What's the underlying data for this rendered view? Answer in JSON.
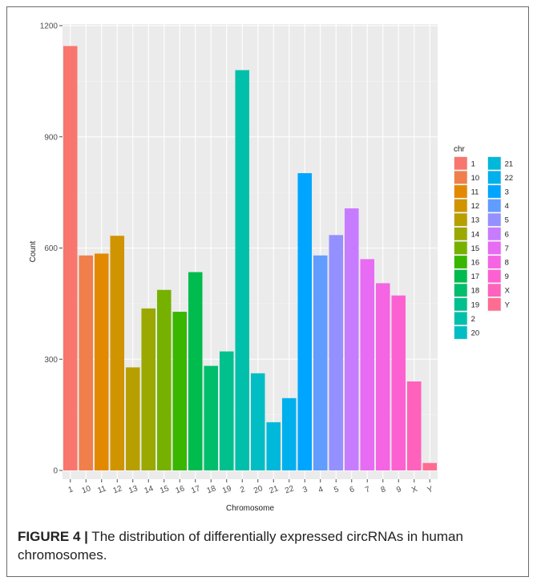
{
  "caption": {
    "label": "FIGURE 4 |",
    "text": " The distribution of differentially expressed circRNAs in human chromosomes."
  },
  "colors": {
    "panel_bg": "#ebebeb",
    "grid_major": "#ffffff",
    "grid_minor": "#f4f4f4"
  },
  "chart_data": {
    "type": "bar",
    "xlabel": "Chromosome",
    "ylabel": "Count",
    "ylim": [
      0,
      1200
    ],
    "yticks": [
      0,
      300,
      600,
      900,
      1200
    ],
    "grid": true,
    "legend_title": "chr",
    "legend_position": "right",
    "categories": [
      "1",
      "10",
      "11",
      "12",
      "13",
      "14",
      "15",
      "16",
      "17",
      "18",
      "19",
      "2",
      "20",
      "21",
      "22",
      "3",
      "4",
      "5",
      "6",
      "7",
      "8",
      "9",
      "X",
      "Y"
    ],
    "values": [
      1145,
      580,
      585,
      633,
      278,
      437,
      487,
      428,
      535,
      282,
      321,
      1080,
      262,
      130,
      195,
      802,
      580,
      635,
      707,
      570,
      505,
      472,
      240,
      20
    ],
    "colors": [
      "#F8766D",
      "#F07F4C",
      "#E38900",
      "#D09400",
      "#B79F00",
      "#9AA800",
      "#76B100",
      "#39B600",
      "#00BB4E",
      "#00BE6C",
      "#00C08D",
      "#00C0AB",
      "#00BEC4",
      "#00B8DA",
      "#00B0EC",
      "#00A5FF",
      "#619CFF",
      "#9590FF",
      "#C77CFF",
      "#E76BF3",
      "#F564E3",
      "#FD61D1",
      "#FF62BC",
      "#FF6C91"
    ]
  }
}
